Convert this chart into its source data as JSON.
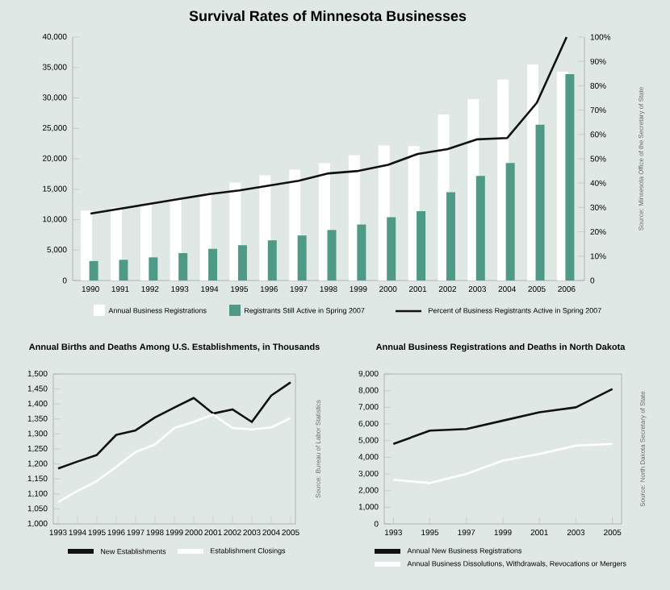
{
  "chart_data": [
    {
      "type": "bar",
      "title": "Survival Rates of Minnesota Businesses",
      "categories": [
        "1990",
        "1991",
        "1992",
        "1993",
        "1994",
        "1995",
        "1996",
        "1997",
        "1998",
        "1999",
        "2000",
        "2001",
        "2002",
        "2003",
        "2004",
        "2005",
        "2006"
      ],
      "series": [
        {
          "name": "Annual Business Registrations",
          "color": "#ffffff",
          "values": [
            11500,
            12000,
            12500,
            13200,
            14200,
            16100,
            17300,
            18200,
            19300,
            20600,
            22200,
            22100,
            27300,
            29800,
            33000,
            35500,
            34300
          ]
        },
        {
          "name": "Registrants Still Active in Spring 2007",
          "color": "#4e9a86",
          "values": [
            3200,
            3400,
            3800,
            4500,
            5200,
            5800,
            6600,
            7400,
            8300,
            9200,
            10400,
            11400,
            14500,
            17200,
            19300,
            25600,
            33900
          ]
        },
        {
          "name": "Percent of Business Registrants Active in Spring 2007",
          "type": "line",
          "axis": "y2",
          "color": "#111111",
          "values": [
            27.5,
            29.5,
            31.5,
            33.5,
            35.5,
            37,
            39,
            41,
            44,
            45,
            47.5,
            52,
            54,
            58,
            58.5,
            73,
            100
          ]
        }
      ],
      "ylim": [
        0,
        40000
      ],
      "yticks": [
        0,
        {
          "value": 5000,
          "label": "5,000"
        },
        {
          "value": 10000,
          "label": "10,000"
        },
        {
          "value": 15000,
          "label": "15,000"
        },
        {
          "value": 20000,
          "label": "20,000"
        },
        {
          "value": 25000,
          "label": "25,000"
        },
        {
          "value": 30000,
          "label": "30,000"
        },
        {
          "value": 35000,
          "label": "35,000"
        },
        {
          "value": 40000,
          "label": "40,000"
        }
      ],
      "y2lim": [
        0,
        100
      ],
      "y2ticks": [
        0,
        {
          "value": 10,
          "label": "10%"
        },
        {
          "value": 20,
          "label": "20%"
        },
        {
          "value": 30,
          "label": "30%"
        },
        {
          "value": 40,
          "label": "40%"
        },
        {
          "value": 50,
          "label": "50%"
        },
        {
          "value": 60,
          "label": "60%"
        },
        {
          "value": 70,
          "label": "70%"
        },
        {
          "value": 80,
          "label": "80%"
        },
        {
          "value": 90,
          "label": "90%"
        },
        {
          "value": 100,
          "label": "100%"
        }
      ],
      "legend": "bottom",
      "annotations": [
        "Source: Minnesota Office of the Secretary of State"
      ]
    },
    {
      "type": "line",
      "title": "Annual Births and Deaths Among U.S. Establishments, in Thousands",
      "categories": [
        "1993",
        "1994",
        "1995",
        "1996",
        "1997",
        "1998",
        "1999",
        "2000",
        "2001",
        "2002",
        "2003",
        "2004",
        "2005"
      ],
      "series": [
        {
          "name": "New Establishments",
          "color": "#111111",
          "values": [
            1185,
            1208,
            1230,
            1297,
            1312,
            1355,
            1388,
            1420,
            1368,
            1382,
            1340,
            1428,
            1472
          ]
        },
        {
          "name": "Establishment Closings",
          "color": "#ffffff",
          "values": [
            1073,
            1110,
            1143,
            1190,
            1240,
            1265,
            1320,
            1340,
            1365,
            1320,
            1315,
            1322,
            1353
          ]
        }
      ],
      "ylim": [
        1000,
        1500
      ],
      "yticks": [
        {
          "value": 1000,
          "label": "1,000"
        },
        {
          "value": 1050,
          "label": "1,050"
        },
        {
          "value": 1100,
          "label": "1,100"
        },
        {
          "value": 1150,
          "label": "1,150"
        },
        {
          "value": 1200,
          "label": "1,200"
        },
        {
          "value": 1250,
          "label": "1,250"
        },
        {
          "value": 1300,
          "label": "1,300"
        },
        {
          "value": 1350,
          "label": "1,350"
        },
        {
          "value": 1400,
          "label": "1,400"
        },
        {
          "value": 1450,
          "label": "1,450"
        },
        {
          "value": 1500,
          "label": "1,500"
        }
      ],
      "legend": "bottom",
      "annotations": [
        "Source: Bureau of Labor Statistics"
      ]
    },
    {
      "type": "line",
      "title": "Annual Business Registrations and Deaths in North Dakota",
      "categories": [
        "1993",
        "1995",
        "1997",
        "1999",
        "2001",
        "2003",
        "2005"
      ],
      "series": [
        {
          "name": "Annual New Business Registrations",
          "color": "#111111",
          "values": [
            4800,
            5600,
            5700,
            6200,
            6700,
            7000,
            8100
          ]
        },
        {
          "name": "Annual Business Dissolutions, Withdrawals, Revocations or Mergers",
          "color": "#ffffff",
          "values": [
            2650,
            2450,
            3000,
            3800,
            4200,
            4700,
            4800
          ]
        }
      ],
      "ylim": [
        0,
        9000
      ],
      "yticks": [
        0,
        {
          "value": 1000,
          "label": "1,000"
        },
        {
          "value": 2000,
          "label": "2,000"
        },
        {
          "value": 3000,
          "label": "3,000"
        },
        {
          "value": 4000,
          "label": "4,000"
        },
        {
          "value": 5000,
          "label": "5,000"
        },
        {
          "value": 6000,
          "label": "6,000"
        },
        {
          "value": 7000,
          "label": "7,000"
        },
        {
          "value": 8000,
          "label": "8,000"
        },
        {
          "value": 9000,
          "label": "9,000"
        }
      ],
      "legend": "bottom",
      "annotations": [
        "Source: North Dakota Secretary of State"
      ]
    }
  ]
}
